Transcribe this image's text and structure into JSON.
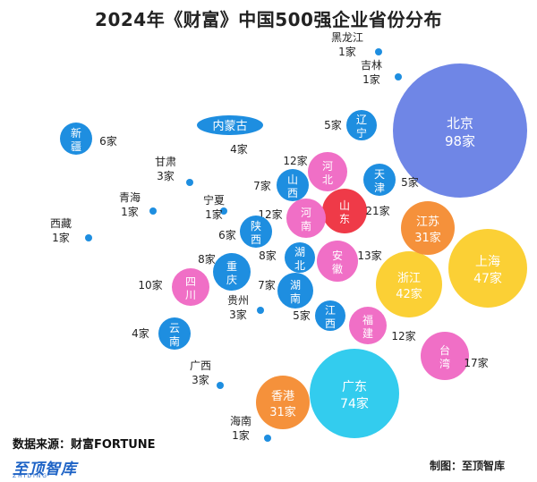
{
  "title": "2024年《财富》中国500强企业省份分布",
  "source": "数据来源：财富FORTUNE",
  "brand": "至顶智库",
  "brand_en": "ZHIDING",
  "credit": "制图：至顶智库",
  "colors": {
    "blue": "#1e8ee0",
    "pink": "#f06fc6",
    "red": "#ef3a48",
    "orange": "#f5913b",
    "yellow": "#fbd035",
    "cyan": "#33ccee",
    "purple": "#6f86e6"
  },
  "chart_data": {
    "type": "bubble",
    "title": "2024年《财富》中国500强企业省份分布",
    "unit": "家",
    "points": [
      {
        "name": "北京",
        "value": 98,
        "color": "purple"
      },
      {
        "name": "广东",
        "value": 74,
        "color": "cyan"
      },
      {
        "name": "上海",
        "value": 47,
        "color": "yellow"
      },
      {
        "name": "浙江",
        "value": 42,
        "color": "yellow"
      },
      {
        "name": "江苏",
        "value": 31,
        "color": "orange"
      },
      {
        "name": "香港",
        "value": 31,
        "color": "orange"
      },
      {
        "name": "山东",
        "value": 21,
        "color": "red"
      },
      {
        "name": "台湾",
        "value": 17,
        "color": "pink"
      },
      {
        "name": "安徽",
        "value": 13,
        "color": "pink"
      },
      {
        "name": "河北",
        "value": 12,
        "color": "pink"
      },
      {
        "name": "河南",
        "value": 12,
        "color": "pink"
      },
      {
        "name": "福建",
        "value": 12,
        "color": "pink"
      },
      {
        "name": "四川",
        "value": 10,
        "color": "pink"
      },
      {
        "name": "山西",
        "value": 7,
        "color": "blue"
      },
      {
        "name": "湖南",
        "value": 7,
        "color": "blue"
      },
      {
        "name": "新疆",
        "value": 6,
        "color": "blue"
      },
      {
        "name": "陕西",
        "value": 6,
        "color": "blue"
      },
      {
        "name": "辽宁",
        "value": 5,
        "color": "blue"
      },
      {
        "name": "天津",
        "value": 5,
        "color": "blue"
      },
      {
        "name": "江西",
        "value": 5,
        "color": "blue"
      },
      {
        "name": "内蒙古",
        "value": 4,
        "color": "blue"
      },
      {
        "name": "云南",
        "value": 4,
        "color": "blue"
      },
      {
        "name": "重庆",
        "value": 8,
        "color": "blue"
      },
      {
        "name": "湖北",
        "value": 8,
        "color": "blue"
      },
      {
        "name": "甘肃",
        "value": 3,
        "color": "blue"
      },
      {
        "name": "贵州",
        "value": 3,
        "color": "blue"
      },
      {
        "name": "广西",
        "value": 3,
        "color": "blue"
      },
      {
        "name": "黑龙江",
        "value": 1,
        "color": "blue"
      },
      {
        "name": "吉林",
        "value": 1,
        "color": "blue"
      },
      {
        "name": "青海",
        "value": 1,
        "color": "blue"
      },
      {
        "name": "宁夏",
        "value": 1,
        "color": "blue"
      },
      {
        "name": "西藏",
        "value": 1,
        "color": "blue"
      },
      {
        "name": "海南",
        "value": 1,
        "color": "blue"
      }
    ]
  }
}
